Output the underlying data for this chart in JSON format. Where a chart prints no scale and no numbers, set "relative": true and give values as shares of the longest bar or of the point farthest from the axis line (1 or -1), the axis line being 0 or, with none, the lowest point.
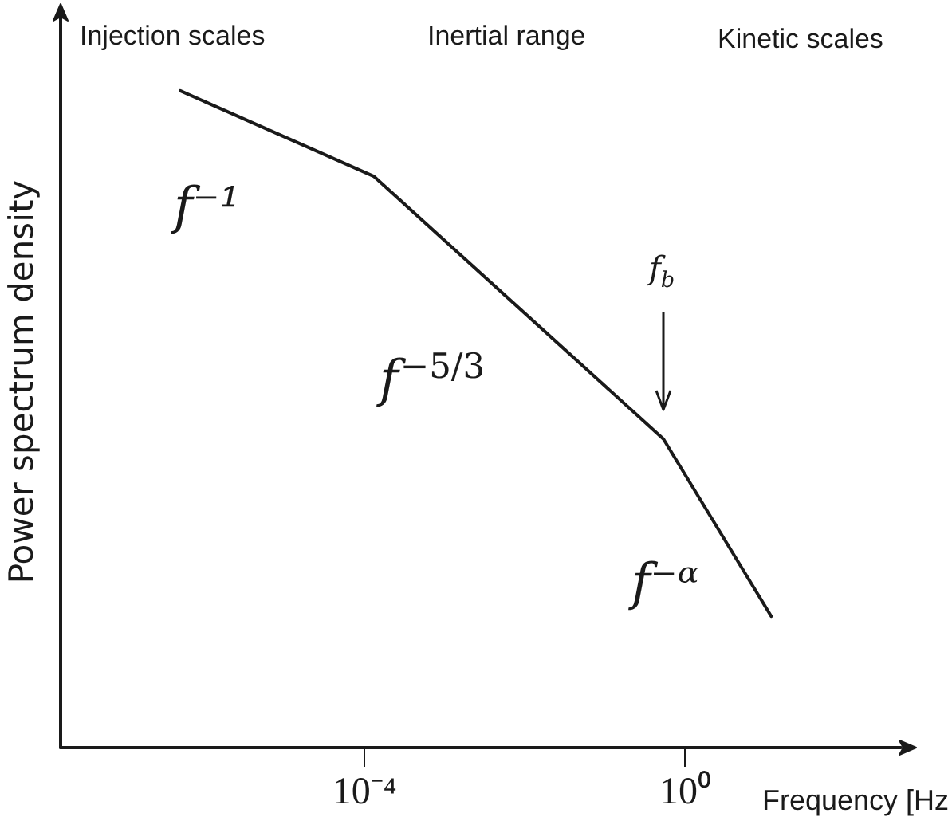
{
  "chart_data": {
    "type": "line",
    "xlabel": "Frequency [Hz",
    "ylabel": "Power spectrum density",
    "x": [
      5e-07,
      0.00013,
      0.54,
      12
    ],
    "values": [
      1,
      0.87,
      0.47,
      0.2
    ],
    "color": "#1a1a1a",
    "relative": true,
    "log": "x",
    "xlim": [
      1.6e-08,
      500
    ],
    "xticks": [
      {
        "value": 0.0001,
        "label": "10⁻⁴"
      },
      {
        "value": 1,
        "label": "10⁰"
      }
    ],
    "tick_labels": "x",
    "marker": "none",
    "line_style": "solid",
    "annotations": [
      "Injection scales",
      "Inertial range",
      "Kinetic scales",
      "f⁻¹",
      "f$^{−5/3}$",
      "f⁻ᵅ",
      "f$_{b}$"
    ]
  }
}
